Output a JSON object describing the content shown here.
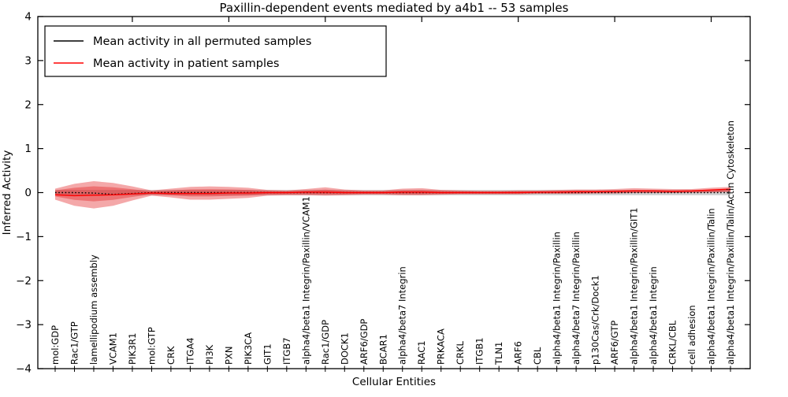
{
  "chart_data": {
    "type": "line",
    "title": "Paxillin-dependent events mediated by a4b1 -- 53 samples",
    "xlabel": "Cellular Entities",
    "ylabel": "Inferred Activity",
    "ylim": [
      -4,
      4
    ],
    "grid": false,
    "legend_position": "upper left",
    "ytick_labels": [
      "−4",
      "−3",
      "−2",
      "−1",
      "0",
      "1",
      "2",
      "3",
      "4"
    ],
    "ytick_values": [
      -4,
      -3,
      -2,
      -1,
      0,
      1,
      2,
      3,
      4
    ],
    "categories": [
      "mol:GDP",
      "Rac1/GTP",
      "lamellipodium assembly",
      "VCAM1",
      "PIK3R1",
      "mol:GTP",
      "CRK",
      "ITGA4",
      "PI3K",
      "PXN",
      "PIK3CA",
      "GIT1",
      "ITGB7",
      "alpha4/beta1 Integrin/Paxillin/VCAM1",
      "Rac1/GDP",
      "DOCK1",
      "ARF6/GDP",
      "BCAR1",
      "alpha4/beta7 Integrin",
      "RAC1",
      "PRKACA",
      "CRKL",
      "ITGB1",
      "TLN1",
      "ARF6",
      "CBL",
      "alpha4/beta1 Integrin/Paxillin",
      "alpha4/beta7 Integrin/Paxillin",
      "p130Cas/Crk/Dock1",
      "ARF6/GTP",
      "alpha4/beta1 Integrin/Paxillin/GIT1",
      "alpha4/beta1 Integrin",
      "CRKL/CBL",
      "cell adhesion",
      "alpha4/beta1 Integrin/Paxillin/Talin",
      "alpha4/beta1 Integrin/Paxillin/Talin/Actin Cytoskeleton"
    ],
    "legend": [
      {
        "label": "Mean activity in all permuted samples",
        "color": "#000000"
      },
      {
        "label": "Mean activity in patient samples",
        "color": "#ff0000"
      }
    ],
    "series": [
      {
        "name": "Mean activity in all permuted samples",
        "color": "#000000",
        "style": "dotted",
        "values": [
          0,
          0,
          -0.01,
          -0.04,
          -0.02,
          0,
          0,
          0,
          0,
          0,
          0,
          0,
          0,
          0,
          0,
          0,
          0,
          0,
          0,
          0,
          0,
          0,
          0,
          0,
          0,
          0,
          0,
          0,
          0,
          0,
          0,
          0,
          0,
          0,
          0,
          0
        ]
      },
      {
        "name": "Mean activity in patient samples",
        "color": "#ff0000",
        "style": "solid",
        "values": [
          -0.05,
          -0.07,
          -0.06,
          -0.05,
          -0.03,
          -0.01,
          -0.02,
          -0.02,
          -0.02,
          -0.01,
          -0.01,
          0.0,
          0.0,
          0.01,
          0.01,
          0.0,
          0.0,
          0.0,
          0.01,
          0.01,
          0.0,
          0.0,
          0.0,
          0.0,
          0.0,
          0.01,
          0.01,
          0.02,
          0.02,
          0.03,
          0.04,
          0.04,
          0.03,
          0.04,
          0.06,
          0.08
        ]
      }
    ],
    "patient_band": {
      "color": "#e31a1c",
      "opacity": 0.38,
      "upper": [
        0.09,
        0.2,
        0.26,
        0.22,
        0.14,
        0.05,
        0.09,
        0.13,
        0.14,
        0.13,
        0.11,
        0.06,
        0.05,
        0.08,
        0.12,
        0.07,
        0.05,
        0.05,
        0.09,
        0.1,
        0.06,
        0.05,
        0.04,
        0.04,
        0.05,
        0.05,
        0.06,
        0.07,
        0.07,
        0.08,
        0.1,
        0.09,
        0.08,
        0.08,
        0.11,
        0.13
      ],
      "lower": [
        -0.16,
        -0.3,
        -0.36,
        -0.3,
        -0.18,
        -0.07,
        -0.11,
        -0.16,
        -0.16,
        -0.14,
        -0.12,
        -0.07,
        -0.06,
        -0.06,
        -0.07,
        -0.06,
        -0.05,
        -0.05,
        -0.06,
        -0.06,
        -0.05,
        -0.04,
        -0.04,
        -0.04,
        -0.04,
        -0.03,
        -0.03,
        -0.03,
        -0.02,
        -0.02,
        -0.01,
        -0.01,
        -0.01,
        0.0,
        0.01,
        0.03
      ]
    },
    "permuted_band": {
      "color": "#999999",
      "opacity": 0.45,
      "upper": 0.06,
      "lower": -0.06
    }
  }
}
